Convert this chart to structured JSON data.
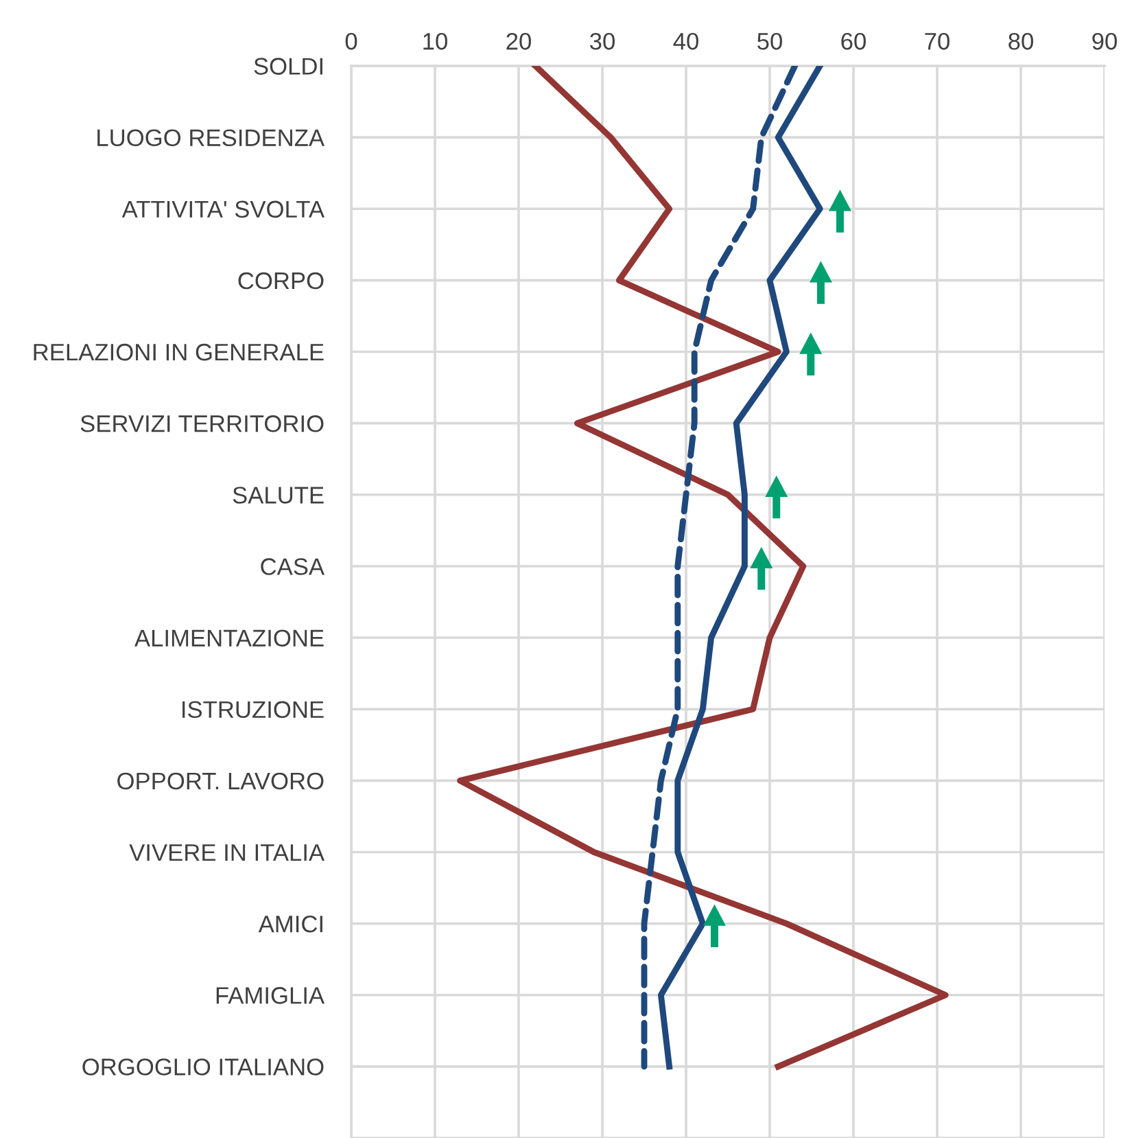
{
  "chart_data": {
    "type": "line",
    "orientation": "horizontal",
    "categories": [
      "SOLDI",
      "LUOGO RESIDENZA",
      "ATTIVITA' SVOLTA",
      "CORPO",
      "RELAZIONI IN GENERALE",
      "SERVIZI TERRITORIO",
      "SALUTE",
      "CASA",
      "ALIMENTAZIONE",
      "ISTRUZIONE",
      "OPPORT. LAVORO",
      "VIVERE IN ITALIA",
      "AMICI",
      "FAMIGLIA",
      "ORGOGLIO ITALIANO"
    ],
    "series": [
      {
        "color": "#943634",
        "line_style": "solid",
        "values": [
          22,
          31,
          38,
          32,
          51,
          27,
          45,
          54,
          50,
          48,
          13,
          29,
          52,
          71,
          51
        ]
      },
      {
        "color": "#1f497d",
        "line_style": "solid",
        "values": [
          56,
          51,
          56,
          50,
          52,
          46,
          47,
          47,
          43,
          42,
          39,
          39,
          42,
          37,
          38
        ]
      },
      {
        "color": "#1f497d",
        "line_style": "dashed",
        "values": [
          53,
          49,
          48,
          43,
          41,
          41,
          40,
          39,
          39,
          39,
          37,
          36,
          35,
          35,
          35
        ]
      }
    ],
    "xlim": [
      0,
      90
    ],
    "xticks": [
      0,
      10,
      20,
      30,
      40,
      50,
      60,
      70,
      80,
      90
    ],
    "grid": true,
    "legend": false,
    "marker": "none"
  }
}
